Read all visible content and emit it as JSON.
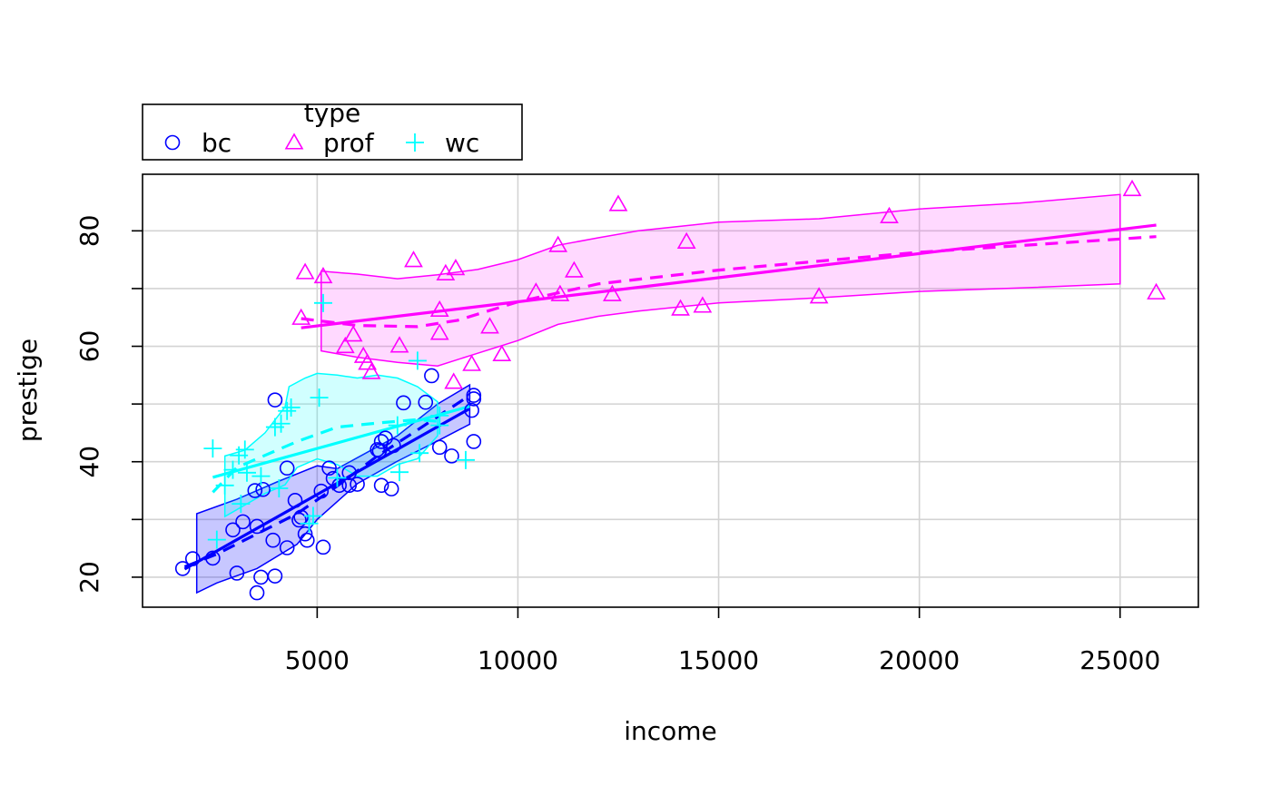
{
  "chart_data": {
    "type": "scatter",
    "xlabel": "income",
    "ylabel": "prestige",
    "xlim": [
      650,
      26950
    ],
    "ylim": [
      14.8,
      89.8
    ],
    "x_ticks": [
      5000,
      10000,
      15000,
      20000,
      25000
    ],
    "y_ticks": [
      20,
      40,
      60,
      80
    ],
    "y_grid": [
      20,
      30,
      40,
      50,
      60,
      70,
      80
    ],
    "x_grid": [
      5000,
      10000,
      15000,
      20000,
      25000
    ],
    "grid": true,
    "legend": {
      "title": "type",
      "position": "top-left, above plot",
      "entries": [
        {
          "label": "bc",
          "symbol": "circle",
          "color": "#0000FF"
        },
        {
          "label": "prof",
          "symbol": "triangle",
          "color": "#FF00FF"
        },
        {
          "label": "wc",
          "symbol": "plus",
          "color": "#00FFFF"
        }
      ]
    },
    "series": [
      {
        "name": "bc",
        "symbol": "circle",
        "color": "#0000FF",
        "band_fill": "rgba(0,0,255,0.22)",
        "points": [
          [
            1650,
            21.5
          ],
          [
            1900,
            23.2
          ],
          [
            2400,
            23.3
          ],
          [
            2900,
            28.2
          ],
          [
            3000,
            20.7
          ],
          [
            3150,
            29.6
          ],
          [
            3450,
            35.0
          ],
          [
            3500,
            28.8
          ],
          [
            3500,
            17.3
          ],
          [
            3600,
            20.0
          ],
          [
            3650,
            35.2
          ],
          [
            3900,
            26.4
          ],
          [
            3950,
            20.2
          ],
          [
            3950,
            50.7
          ],
          [
            4250,
            38.9
          ],
          [
            4250,
            25.1
          ],
          [
            4450,
            33.3
          ],
          [
            4550,
            29.9
          ],
          [
            4600,
            30.4
          ],
          [
            4700,
            27.5
          ],
          [
            4750,
            26.4
          ],
          [
            5100,
            34.9
          ],
          [
            5150,
            25.2
          ],
          [
            5300,
            38.9
          ],
          [
            5400,
            37.1
          ],
          [
            5550,
            35.9
          ],
          [
            5800,
            38.1
          ],
          [
            5800,
            35.9
          ],
          [
            6000,
            36.1
          ],
          [
            6500,
            42.1
          ],
          [
            6550,
            41.9
          ],
          [
            6600,
            35.9
          ],
          [
            6600,
            43.5
          ],
          [
            6700,
            44.1
          ],
          [
            6850,
            35.3
          ],
          [
            6900,
            42.8
          ],
          [
            7150,
            50.2
          ],
          [
            7700,
            50.3
          ],
          [
            7850,
            54.9
          ],
          [
            8050,
            42.5
          ],
          [
            8350,
            41.0
          ],
          [
            8850,
            48.9
          ],
          [
            8900,
            43.5
          ],
          [
            8900,
            50.9
          ],
          [
            8900,
            51.5
          ]
        ],
        "fit_line": [
          [
            1700,
            21.4
          ],
          [
            8800,
            49.2
          ]
        ],
        "smooth_line": [
          [
            1700,
            21.8
          ],
          [
            2500,
            24.0
          ],
          [
            3500,
            27.5
          ],
          [
            4500,
            31.0
          ],
          [
            5500,
            35.8
          ],
          [
            6500,
            41.0
          ],
          [
            7500,
            45.5
          ],
          [
            8800,
            51.5
          ]
        ],
        "band_upper": [
          [
            2000,
            31.0
          ],
          [
            3000,
            33.5
          ],
          [
            4000,
            36.5
          ],
          [
            5000,
            39.3
          ],
          [
            5500,
            38.8
          ],
          [
            6000,
            40.7
          ],
          [
            7000,
            44.5
          ],
          [
            8000,
            50.0
          ],
          [
            8800,
            53.3
          ]
        ],
        "band_lower": [
          [
            2000,
            17.3
          ],
          [
            2500,
            19.0
          ],
          [
            3500,
            21.5
          ],
          [
            4500,
            25.7
          ],
          [
            5000,
            30.0
          ],
          [
            6000,
            36.2
          ],
          [
            7000,
            40.1
          ],
          [
            8000,
            43.6
          ],
          [
            8800,
            46.5
          ]
        ]
      },
      {
        "name": "prof",
        "symbol": "triangle",
        "color": "#FF00FF",
        "band_fill": "rgba(255,0,255,0.15)",
        "points": [
          [
            4600,
            64.9
          ],
          [
            4700,
            72.8
          ],
          [
            5150,
            72.1
          ],
          [
            5700,
            60.0
          ],
          [
            5900,
            62.0
          ],
          [
            6150,
            58.3
          ],
          [
            6250,
            57.1
          ],
          [
            6350,
            55.5
          ],
          [
            7050,
            60.1
          ],
          [
            7400,
            74.9
          ],
          [
            8050,
            66.3
          ],
          [
            8050,
            62.3
          ],
          [
            8200,
            72.6
          ],
          [
            8400,
            53.8
          ],
          [
            8450,
            73.5
          ],
          [
            8850,
            56.9
          ],
          [
            9300,
            63.4
          ],
          [
            9600,
            58.6
          ],
          [
            10450,
            69.4
          ],
          [
            11000,
            77.5
          ],
          [
            11050,
            69.0
          ],
          [
            11400,
            73.1
          ],
          [
            12350,
            69.0
          ],
          [
            12500,
            84.6
          ],
          [
            14050,
            66.5
          ],
          [
            14200,
            78.1
          ],
          [
            14600,
            67.0
          ],
          [
            17500,
            68.6
          ],
          [
            19250,
            82.5
          ],
          [
            25300,
            87.2
          ],
          [
            25900,
            69.3
          ]
        ],
        "fit_line": [
          [
            4600,
            63.2
          ],
          [
            25900,
            81.0
          ]
        ],
        "smooth_line": [
          [
            4600,
            64.8
          ],
          [
            6000,
            63.6
          ],
          [
            7500,
            63.4
          ],
          [
            8500,
            64.5
          ],
          [
            10000,
            67.7
          ],
          [
            12000,
            70.8
          ],
          [
            15000,
            73.2
          ],
          [
            20000,
            76.3
          ],
          [
            25900,
            79.0
          ]
        ],
        "band_upper": [
          [
            5100,
            73.0
          ],
          [
            6000,
            72.5
          ],
          [
            7000,
            71.7
          ],
          [
            8000,
            72.4
          ],
          [
            9000,
            73.3
          ],
          [
            10000,
            75.0
          ],
          [
            11000,
            77.5
          ],
          [
            12000,
            78.8
          ],
          [
            13000,
            80.0
          ],
          [
            15000,
            81.5
          ],
          [
            17500,
            82.1
          ],
          [
            20000,
            83.8
          ],
          [
            22500,
            84.8
          ],
          [
            25000,
            86.3
          ]
        ],
        "band_lower": [
          [
            5100,
            59.2
          ],
          [
            6000,
            58.1
          ],
          [
            7000,
            57.2
          ],
          [
            8000,
            56.6
          ],
          [
            9000,
            58.8
          ],
          [
            10000,
            61.0
          ],
          [
            11000,
            63.8
          ],
          [
            12000,
            65.2
          ],
          [
            13000,
            66.1
          ],
          [
            15000,
            67.5
          ],
          [
            17500,
            68.4
          ],
          [
            20000,
            69.5
          ],
          [
            22500,
            70.1
          ],
          [
            25000,
            70.8
          ]
        ]
      },
      {
        "name": "wc",
        "symbol": "plus",
        "color": "#00FFFF",
        "band_fill": "rgba(0,255,255,0.18)",
        "points": [
          [
            2400,
            42.3
          ],
          [
            2500,
            26.5
          ],
          [
            2700,
            35.9
          ],
          [
            2900,
            38.6
          ],
          [
            3050,
            41.1
          ],
          [
            3100,
            32.7
          ],
          [
            3200,
            42.1
          ],
          [
            3250,
            38.1
          ],
          [
            3600,
            37.5
          ],
          [
            3950,
            46.0
          ],
          [
            4050,
            35.4
          ],
          [
            4100,
            46.6
          ],
          [
            4250,
            48.8
          ],
          [
            4350,
            49.4
          ],
          [
            4800,
            29.3
          ],
          [
            4900,
            30.6
          ],
          [
            5050,
            51.1
          ],
          [
            5150,
            67.5
          ],
          [
            5500,
            37.2
          ],
          [
            7000,
            46.3
          ],
          [
            7050,
            38.2
          ],
          [
            7500,
            57.5
          ],
          [
            7550,
            41.5
          ],
          [
            8050,
            46.3
          ],
          [
            8050,
            48.0
          ],
          [
            8700,
            40.3
          ]
        ],
        "fit_line": [
          [
            2400,
            37.3
          ],
          [
            8800,
            49.6
          ]
        ],
        "smooth_line": [
          [
            2400,
            34.7
          ],
          [
            3000,
            39.0
          ],
          [
            3500,
            40.5
          ],
          [
            4500,
            43.5
          ],
          [
            5500,
            46.0
          ],
          [
            6500,
            46.7
          ],
          [
            7500,
            47.3
          ],
          [
            8000,
            47.0
          ]
        ],
        "band_upper": [
          [
            2700,
            41.0
          ],
          [
            3200,
            42.0
          ],
          [
            3700,
            45.0
          ],
          [
            4200,
            49.5
          ],
          [
            4300,
            53.0
          ],
          [
            4700,
            54.5
          ],
          [
            5000,
            55.3
          ],
          [
            5500,
            55.0
          ],
          [
            6000,
            54.5
          ],
          [
            6500,
            55.0
          ],
          [
            7000,
            54.5
          ],
          [
            7500,
            53.0
          ],
          [
            8000,
            50.4
          ]
        ],
        "band_lower": [
          [
            2700,
            30.5
          ],
          [
            3200,
            32.5
          ],
          [
            3700,
            34.5
          ],
          [
            4200,
            36.0
          ],
          [
            4500,
            39.0
          ],
          [
            5000,
            40.5
          ],
          [
            5500,
            39.5
          ],
          [
            6000,
            37.5
          ],
          [
            6500,
            37.5
          ],
          [
            7000,
            39.5
          ],
          [
            7500,
            40.5
          ],
          [
            8000,
            44.5
          ]
        ]
      }
    ]
  }
}
